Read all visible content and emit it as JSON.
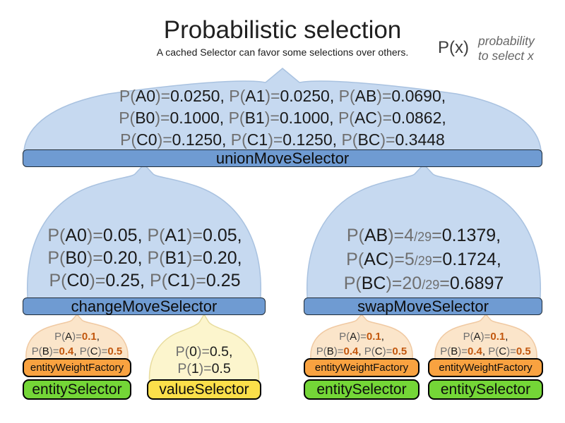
{
  "header": {
    "title": "Probabilistic selection",
    "subtitle": "A cached Selector can favor some selections over others.",
    "legend": {
      "symbol": "P(x)",
      "description_line1": "probability",
      "description_line2": "to select x"
    }
  },
  "union_move_selector": {
    "label": "unionMoveSelector",
    "probability_lines": [
      "P(A0)=0.0250, P(A1)=0.0250, P(AB)=0.0690,",
      "P(B0)=0.1000, P(B1)=0.1000, P(AC)=0.0862,",
      "P(C0)=0.1250, P(C1)=0.1250, P(BC)=0.3448"
    ]
  },
  "change_move_selector": {
    "label": "changeMoveSelector",
    "probability_lines": [
      "P(A0)=0.05, P(A1)=0.05,",
      "P(B0)=0.20, P(B1)=0.20,",
      "P(C0)=0.25, P(C1)=0.25"
    ]
  },
  "swap_move_selector": {
    "label": "swapMoveSelector",
    "probability_lines": [
      "P(AB)=4/29=0.1379,",
      "P(AC)=5/29=0.1724,",
      "P(BC)=20/29=0.6897"
    ]
  },
  "entity_column": {
    "weight_factory_label": "entityWeightFactory",
    "selector_label": "entitySelector",
    "probability_lines": [
      "P(A)=0.1,",
      "P(B)=0.4, P(C)=0.5"
    ]
  },
  "value_column": {
    "selector_label": "valueSelector",
    "probability_lines": [
      "P(0)=0.5,",
      "P(1)=0.5"
    ]
  },
  "colors": {
    "selector_bar_blue": "#6f9bd2",
    "funnel_light_blue": "#c6d9f0",
    "weight_factory_orange": "#f9a240",
    "entity_selector_green": "#74d637",
    "value_selector_yellow": "#fbdf4a",
    "funnel_pale_orange": "#fbe5ca",
    "funnel_pale_yellow": "#fcf5cd",
    "probability_value_orange": "#c2570e",
    "probability_symbol_gray": "#6f6f6f"
  }
}
